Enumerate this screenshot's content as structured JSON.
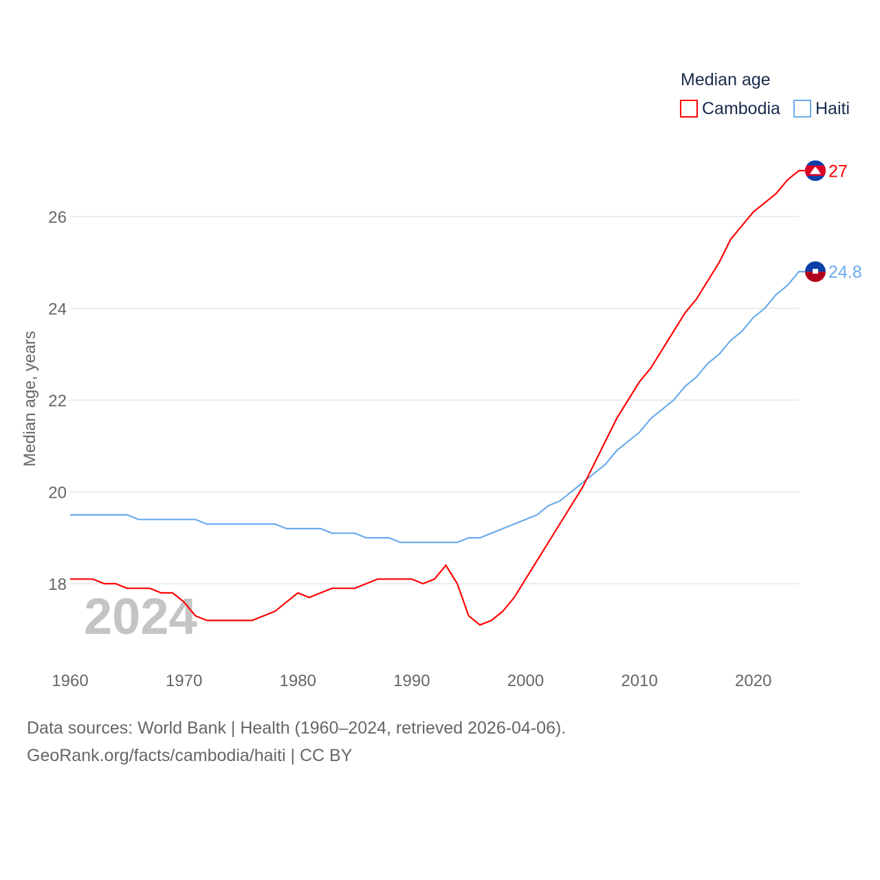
{
  "chart_data": {
    "type": "line",
    "title": "Median age",
    "ylabel": "Median age, years",
    "xlabel": "",
    "year_watermark": "2024",
    "xlim": [
      1960,
      2024
    ],
    "ylim": [
      16.2,
      27.6
    ],
    "x_ticks": [
      1960,
      1970,
      1980,
      1990,
      2000,
      2010,
      2020
    ],
    "y_ticks": [
      18,
      20,
      22,
      24,
      26
    ],
    "grid": true,
    "legend_position": "top-right",
    "x": [
      1960,
      1961,
      1962,
      1963,
      1964,
      1965,
      1966,
      1967,
      1968,
      1969,
      1970,
      1971,
      1972,
      1973,
      1974,
      1975,
      1976,
      1977,
      1978,
      1979,
      1980,
      1981,
      1982,
      1983,
      1984,
      1985,
      1986,
      1987,
      1988,
      1989,
      1990,
      1991,
      1992,
      1993,
      1994,
      1995,
      1996,
      1997,
      1998,
      1999,
      2000,
      2001,
      2002,
      2003,
      2004,
      2005,
      2006,
      2007,
      2008,
      2009,
      2010,
      2011,
      2012,
      2013,
      2014,
      2015,
      2016,
      2017,
      2018,
      2019,
      2020,
      2021,
      2022,
      2023,
      2024
    ],
    "series": [
      {
        "name": "Cambodia",
        "color": "#ff0000",
        "end_label": "27",
        "flag": "cambodia-flag",
        "values": [
          18.1,
          18.1,
          18.1,
          18.0,
          18.0,
          17.9,
          17.9,
          17.9,
          17.8,
          17.8,
          17.6,
          17.3,
          17.2,
          17.2,
          17.2,
          17.2,
          17.2,
          17.3,
          17.4,
          17.6,
          17.8,
          17.7,
          17.8,
          17.9,
          17.9,
          17.9,
          18.0,
          18.1,
          18.1,
          18.1,
          18.1,
          18.0,
          18.1,
          18.4,
          18.0,
          17.3,
          17.1,
          17.2,
          17.4,
          17.7,
          18.1,
          18.5,
          18.9,
          19.3,
          19.7,
          20.1,
          20.6,
          21.1,
          21.6,
          22.0,
          22.4,
          22.7,
          23.1,
          23.5,
          23.9,
          24.2,
          24.6,
          25.0,
          25.5,
          25.8,
          26.1,
          26.3,
          26.5,
          26.8,
          27.0
        ]
      },
      {
        "name": "Haiti",
        "color": "#6aaaee",
        "end_label": "24.8",
        "flag": "haiti-flag",
        "values": [
          19.5,
          19.5,
          19.5,
          19.5,
          19.5,
          19.5,
          19.4,
          19.4,
          19.4,
          19.4,
          19.4,
          19.4,
          19.3,
          19.3,
          19.3,
          19.3,
          19.3,
          19.3,
          19.3,
          19.2,
          19.2,
          19.2,
          19.2,
          19.1,
          19.1,
          19.1,
          19.0,
          19.0,
          19.0,
          18.9,
          18.9,
          18.9,
          18.9,
          18.9,
          18.9,
          19.0,
          19.0,
          19.1,
          19.2,
          19.3,
          19.4,
          19.5,
          19.7,
          19.8,
          20.0,
          20.2,
          20.4,
          20.6,
          20.9,
          21.1,
          21.3,
          21.6,
          21.8,
          22.0,
          22.3,
          22.5,
          22.8,
          23.0,
          23.3,
          23.5,
          23.8,
          24.0,
          24.3,
          24.5,
          24.8
        ]
      }
    ]
  },
  "footer": {
    "sources": "Data sources: World Bank | Health (1960–2024, retrieved 2026-04-06).",
    "credit": "GeoRank.org/facts/cambodia/haiti | CC BY"
  }
}
